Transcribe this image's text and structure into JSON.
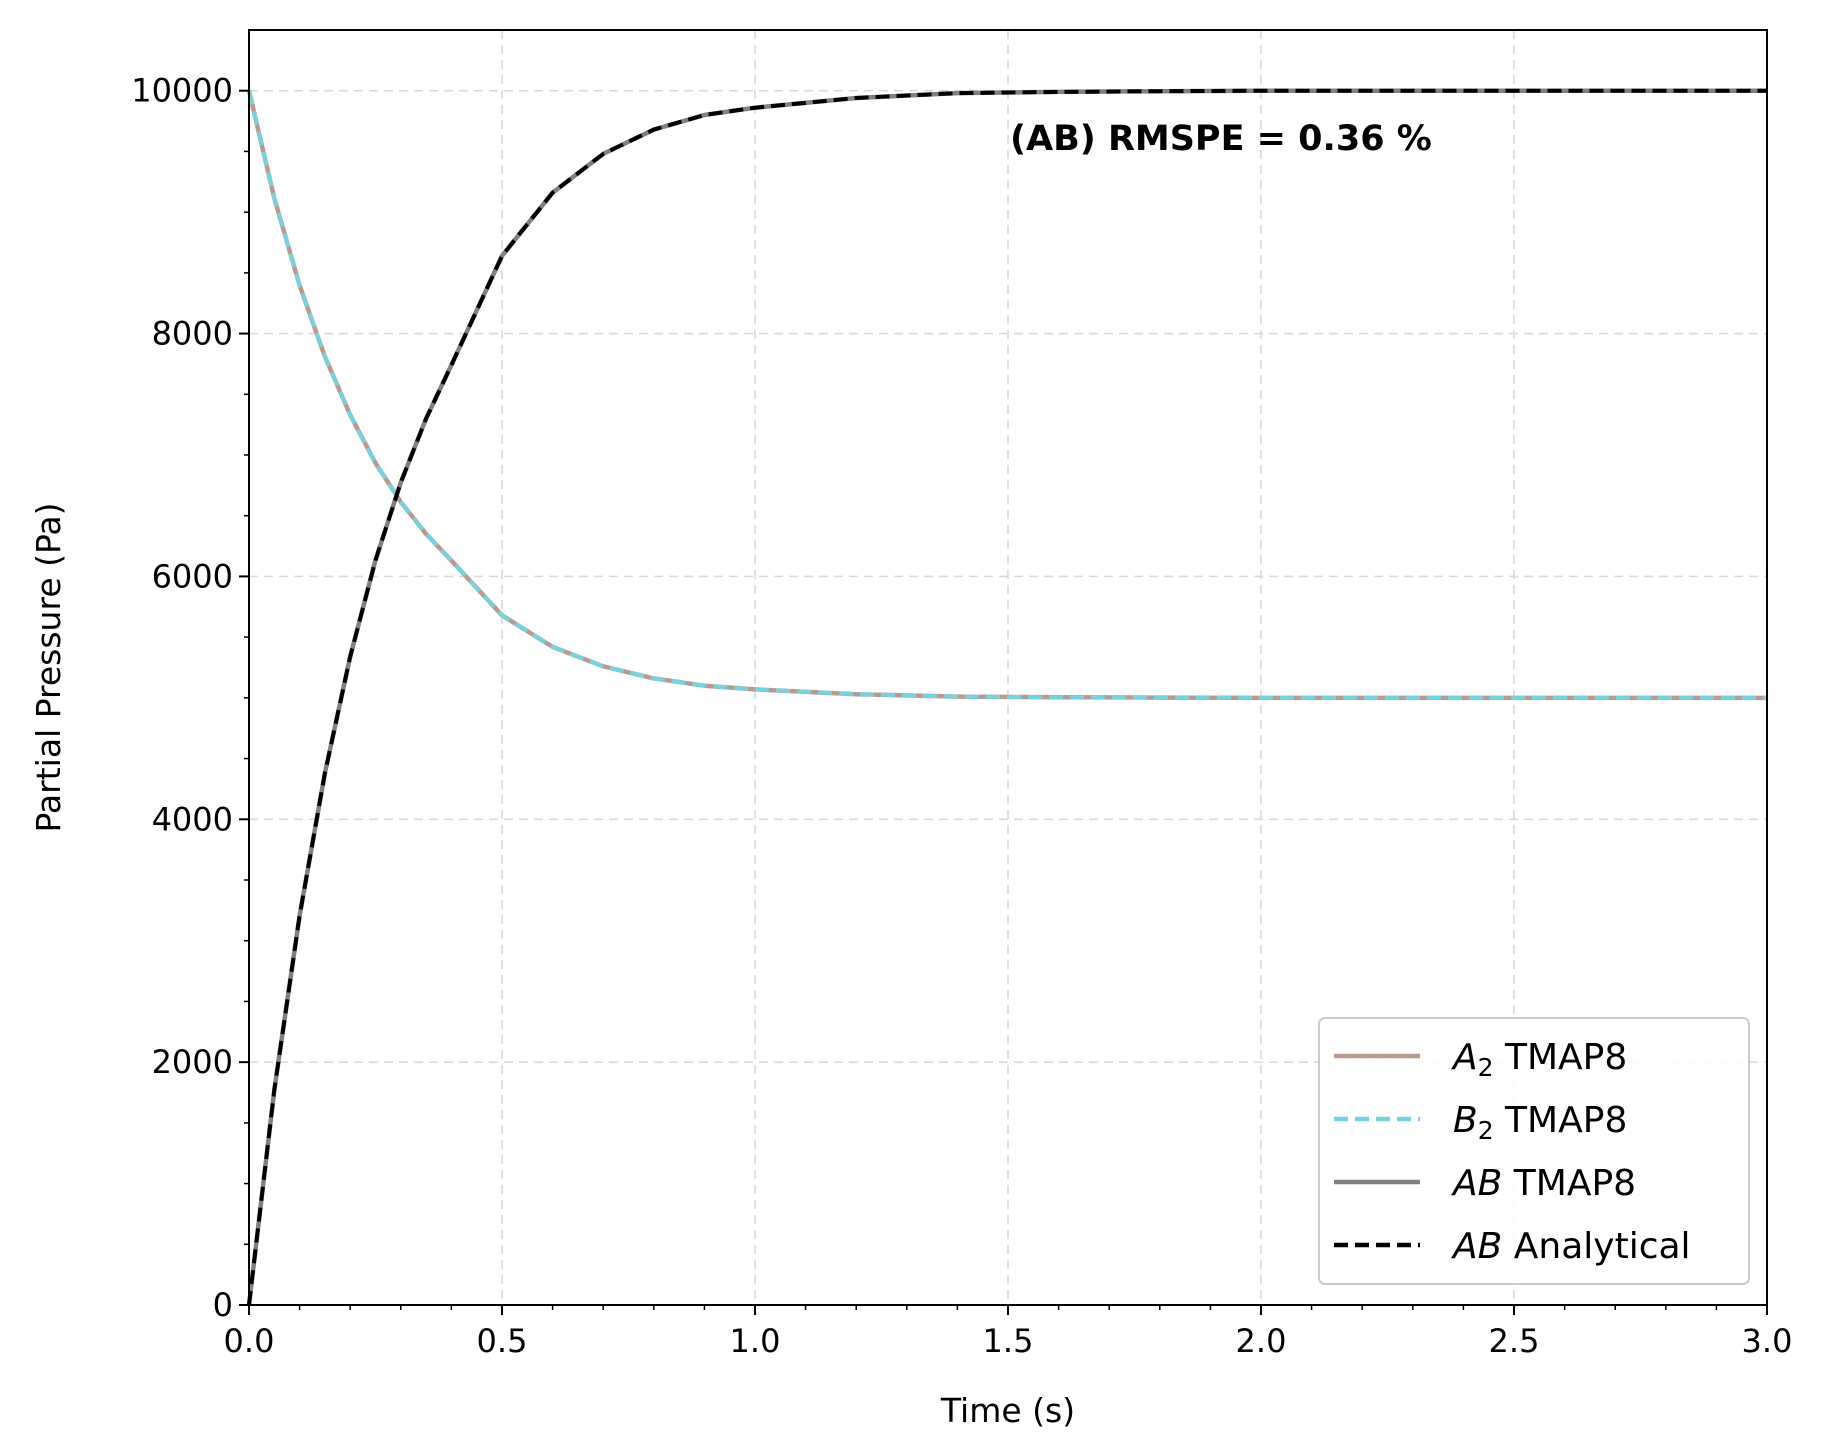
{
  "chart_data": {
    "type": "line",
    "xlabel": "Time (s)",
    "ylabel": "Partial Pressure (Pa)",
    "xlim": [
      0,
      3
    ],
    "ylim": [
      0,
      10500
    ],
    "x_ticks": [
      "0.0",
      "0.5",
      "1.0",
      "1.5",
      "2.0",
      "2.5",
      "3.0"
    ],
    "x_tick_values": [
      0,
      0.5,
      1.0,
      1.5,
      2.0,
      2.5,
      3.0
    ],
    "y_ticks": [
      "0",
      "2000",
      "4000",
      "6000",
      "8000",
      "10000"
    ],
    "y_tick_values": [
      0,
      2000,
      4000,
      6000,
      8000,
      10000
    ],
    "grid": true,
    "legend_position": "lower-right",
    "annotation": "(AB) RMSPE = 0.36 %",
    "x": [
      0,
      0.05,
      0.1,
      0.15,
      0.2,
      0.25,
      0.3,
      0.35,
      0.4,
      0.5,
      0.6,
      0.7,
      0.8,
      0.9,
      1.0,
      1.2,
      1.4,
      1.6,
      1.8,
      2.0,
      2.2,
      2.4,
      2.6,
      2.8,
      3.0
    ],
    "series": [
      {
        "name": "A2 TMAP8",
        "legend_italic": "A",
        "legend_sub": "2",
        "legend_rest": " TMAP8",
        "color": "#bc998f",
        "dash": "solid",
        "values": [
          10000,
          9115,
          8397,
          7810,
          7330,
          6933,
          6613,
          6350,
          6130,
          5680,
          5420,
          5260,
          5160,
          5100,
          5070,
          5030,
          5010,
          5005,
          5002,
          5000,
          5000,
          5000,
          5000,
          5000,
          5000
        ]
      },
      {
        "name": "B2 TMAP8",
        "legend_italic": "B",
        "legend_sub": "2",
        "legend_rest": " TMAP8",
        "color": "#75d3df",
        "dash": "dashed",
        "values": [
          10000,
          9115,
          8397,
          7810,
          7330,
          6933,
          6613,
          6350,
          6130,
          5680,
          5420,
          5260,
          5160,
          5100,
          5070,
          5030,
          5010,
          5005,
          5002,
          5000,
          5000,
          5000,
          5000,
          5000,
          5000
        ]
      },
      {
        "name": "AB TMAP8",
        "legend_italic": "AB",
        "legend_sub": "",
        "legend_rest": " TMAP8",
        "color": "#808080",
        "dash": "solid",
        "values": [
          0,
          1770,
          3206,
          4380,
          5340,
          6134,
          6774,
          7300,
          7740,
          8640,
          9160,
          9480,
          9680,
          9800,
          9860,
          9940,
          9980,
          9990,
          9996,
          10000,
          10000,
          10000,
          10000,
          10000,
          10000
        ]
      },
      {
        "name": "AB Analytical",
        "legend_italic": "AB",
        "legend_sub": "",
        "legend_rest": " Analytical",
        "color": "#000000",
        "dash": "dashed",
        "values": [
          0,
          1770,
          3206,
          4380,
          5340,
          6134,
          6774,
          7300,
          7740,
          8640,
          9160,
          9480,
          9680,
          9800,
          9860,
          9940,
          9980,
          9990,
          9996,
          10000,
          10000,
          10000,
          10000,
          10000,
          10000
        ]
      }
    ]
  }
}
